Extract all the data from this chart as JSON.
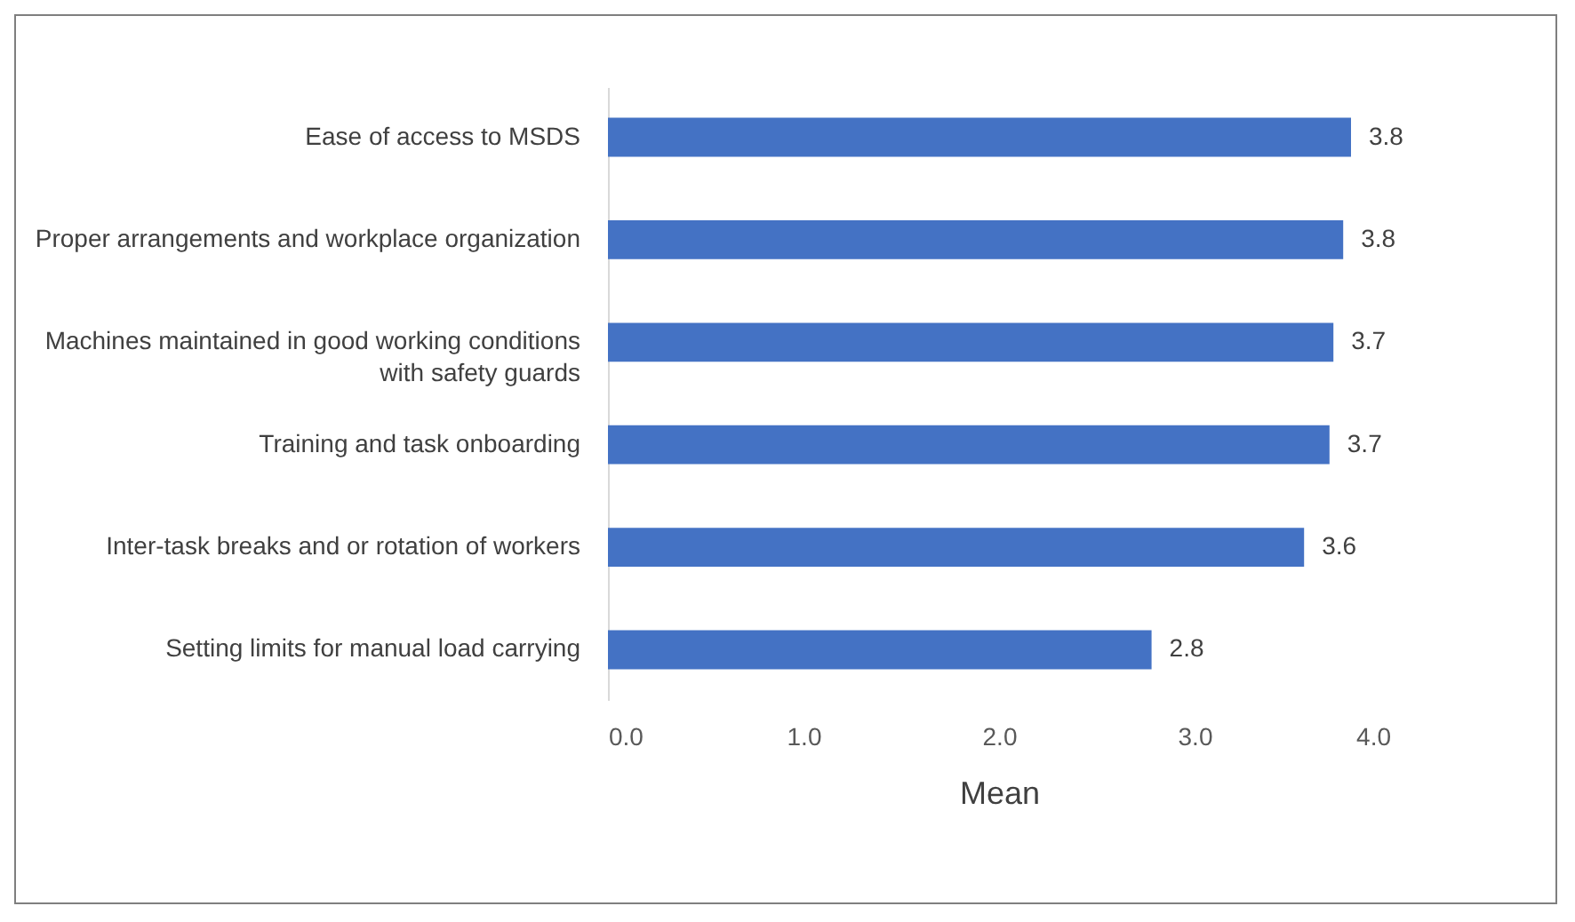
{
  "chart_data": {
    "type": "bar",
    "orientation": "horizontal",
    "xlabel": "Mean",
    "categories": [
      "Ease of access to MSDS",
      "Proper arrangements and workplace organization",
      "Machines  maintained in good working conditions with safety guards",
      "Training and task onboarding",
      "Inter-task breaks and or rotation of workers",
      "Setting limits for manual load carrying"
    ],
    "values": [
      3.8,
      3.76,
      3.71,
      3.69,
      3.56,
      2.78
    ],
    "value_labels": [
      "3.8",
      "3.8",
      "3.7",
      "3.7",
      "3.6",
      "2.8"
    ],
    "color": "#4472c4",
    "xlim": [
      0,
      4
    ],
    "xticks": [
      {
        "value": 0,
        "label": "0.0"
      },
      {
        "value": 1,
        "label": "1.0"
      },
      {
        "value": 2,
        "label": "2.0"
      },
      {
        "value": 3,
        "label": "3.0"
      },
      {
        "value": 4,
        "label": "4.0"
      }
    ],
    "grid": false
  }
}
